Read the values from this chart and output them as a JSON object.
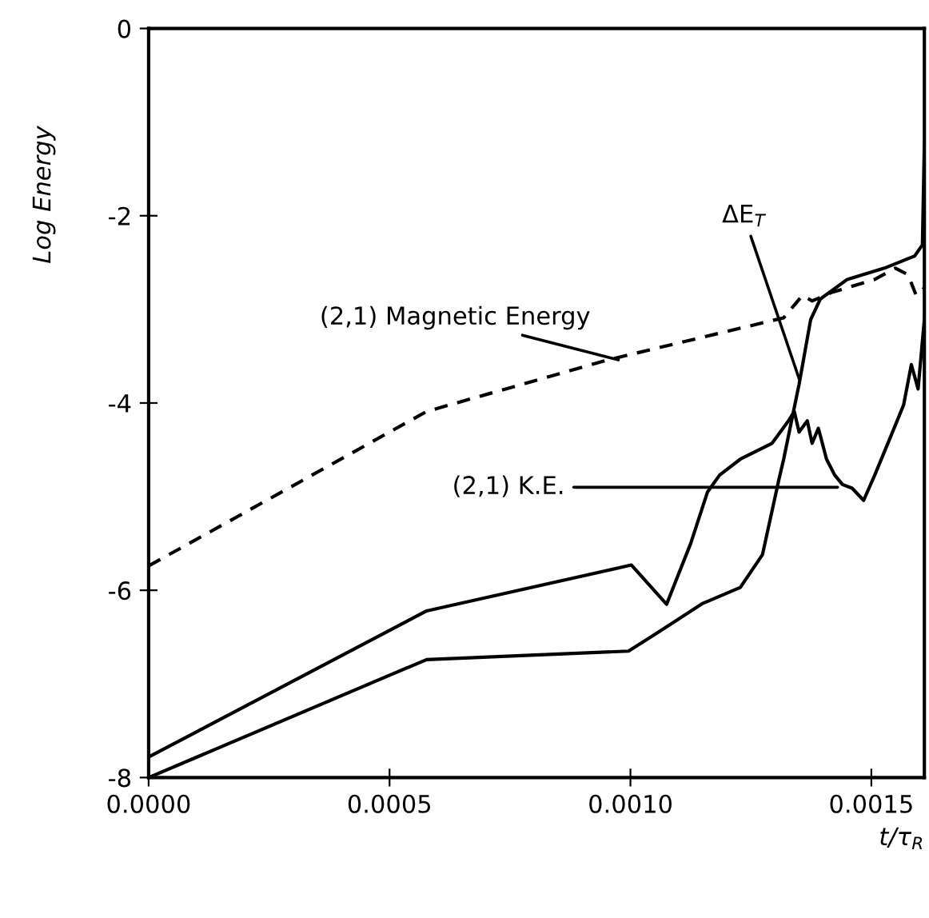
{
  "chart_data": {
    "type": "line",
    "xlabel": "t/τ$_{R}$",
    "ylabel": "Log Energy",
    "xlim": [
      0,
      0.00161
    ],
    "ylim": [
      -8,
      0
    ],
    "xticks": [
      {
        "value": 0,
        "label": "0.0000"
      },
      {
        "value": 0.0005,
        "label": "0.0005"
      },
      {
        "value": 0.001,
        "label": "0.0010"
      },
      {
        "value": 0.0015,
        "label": "0.0015"
      }
    ],
    "yticks": [
      {
        "value": 0,
        "label": "0"
      },
      {
        "value": -2,
        "label": "-2"
      },
      {
        "value": -4,
        "label": "-4"
      },
      {
        "value": -6,
        "label": "-6"
      },
      {
        "value": -8,
        "label": "-8"
      }
    ],
    "grid": false,
    "marker": "none",
    "series": [
      {
        "color": "#000000",
        "line_style": "dashed",
        "x": [
          0,
          0.000577,
          0.000953,
          0.001318,
          0.001357,
          0.001377,
          0.001417,
          0.001507,
          0.00155,
          0.001576,
          0.001593,
          0.00161
        ],
        "values": [
          -5.74,
          -4.09,
          -3.54,
          -3.09,
          -2.85,
          -2.91,
          -2.82,
          -2.68,
          -2.56,
          -2.63,
          -2.85,
          -2.77
        ]
      },
      {
        "color": "#000000",
        "line_style": "solid",
        "x": [
          0,
          0.000577,
          0.001002,
          0.001075,
          0.001125,
          0.00116,
          0.001185,
          0.001228,
          0.001294,
          0.001328,
          0.00134,
          0.00135,
          0.001367,
          0.001377,
          0.00139,
          0.001407,
          0.001424,
          0.00144,
          0.00146,
          0.001484,
          0.001507,
          0.00154,
          0.001567,
          0.001583,
          0.001597,
          0.00161
        ],
        "values": [
          -7.78,
          -6.22,
          -5.73,
          -6.15,
          -5.5,
          -4.95,
          -4.77,
          -4.6,
          -4.43,
          -4.19,
          -4.09,
          -4.31,
          -4.19,
          -4.43,
          -4.27,
          -4.6,
          -4.77,
          -4.87,
          -4.91,
          -5.04,
          -4.77,
          -4.36,
          -4.02,
          -3.59,
          -3.85,
          -3.11
        ]
      },
      {
        "color": "#000000",
        "line_style": "solid",
        "x": [
          0,
          0.000577,
          0.000996,
          0.00106,
          0.00115,
          0.001228,
          0.001274,
          0.001308,
          0.001318,
          0.00135,
          0.001374,
          0.001394,
          0.00145,
          0.001527,
          0.00159,
          0.001606,
          0.00161
        ],
        "values": [
          -8,
          -6.74,
          -6.65,
          -6.44,
          -6.14,
          -5.97,
          -5.62,
          -4.82,
          -4.6,
          -3.8,
          -3.11,
          -2.89,
          -2.68,
          -2.56,
          -2.43,
          -2.31,
          -1.23
        ]
      }
    ],
    "annotations": [
      {
        "text": "(2,1) Magnetic Energy",
        "x": 0.000975,
        "y": -3.54
      },
      {
        "text": "ΔE$_{T}$",
        "x": 0.00135,
        "y": -3.74
      },
      {
        "text": "(2,1) K.E.",
        "x": 0.00143,
        "y": -4.9
      }
    ]
  }
}
